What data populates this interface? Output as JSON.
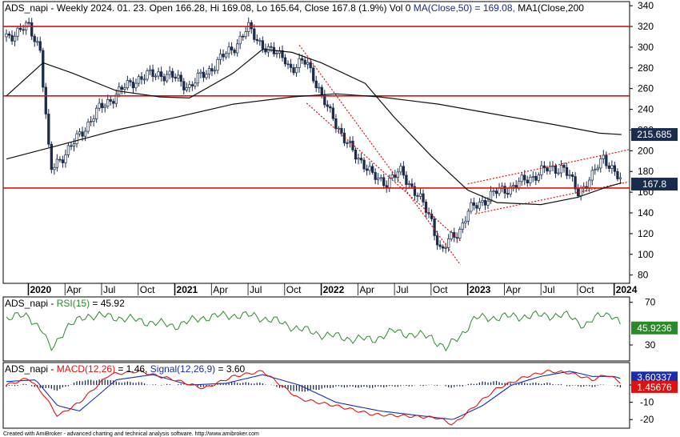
{
  "header": {
    "ticker": "ADS_napi",
    "price_text": " - Weekly 2024. 01. 23. Open 166.28, Hi 169.08, Lo 165.64, Close 167.8 (1.9%) Vol 0 ",
    "ma50_text": "MA(Close,50) = 169.08,",
    "ma200_text": " MA1(Close,200"
  },
  "rsi_header": {
    "ticker": "ADS_napi",
    "sep": " - ",
    "label": "RSI(15)",
    "value": " = 45.92"
  },
  "macd_header": {
    "ticker": "ADS_napi",
    "sep": " - ",
    "macd": "MACD(12,26)",
    "macd_value": " = 1.46, ",
    "signal": "Signal(12,26,9)",
    "signal_value": " = 3.60"
  },
  "footer": "Created with AmiBroker - advanced charting and technical analysis software. http://www.amibroker.com",
  "colors": {
    "candle": "#1a2c4e",
    "ma": "#111111",
    "support": "#e01010",
    "channel": "#e01010",
    "rsi": "#2a8a2a",
    "macd": "#e01010",
    "signal": "#1a2cb0",
    "hist": "#1a2c4e"
  },
  "chart_data": [
    {
      "type": "candlestick",
      "title": "ADS_napi - Weekly",
      "x_labels": [
        "2020",
        "Apr",
        "Jul",
        "Oct",
        "2021",
        "Apr",
        "Jul",
        "Oct",
        "2022",
        "Apr",
        "Jul",
        "Oct",
        "2023",
        "Apr",
        "Jul",
        "Oct",
        "2024"
      ],
      "y_ticks": [
        80,
        100,
        120,
        140,
        160,
        180,
        200,
        220,
        240,
        260,
        280,
        300,
        320,
        340
      ],
      "ylim": [
        72,
        344
      ],
      "close_series": [
        [
          2019.85,
          310
        ],
        [
          2020.0,
          320
        ],
        [
          2020.08,
          300
        ],
        [
          2020.15,
          180
        ],
        [
          2020.2,
          190
        ],
        [
          2020.3,
          205
        ],
        [
          2020.45,
          235
        ],
        [
          2020.6,
          255
        ],
        [
          2020.75,
          270
        ],
        [
          2020.9,
          275
        ],
        [
          2021.0,
          270
        ],
        [
          2021.1,
          262
        ],
        [
          2021.25,
          280
        ],
        [
          2021.4,
          300
        ],
        [
          2021.5,
          318
        ],
        [
          2021.55,
          310
        ],
        [
          2021.65,
          295
        ],
        [
          2021.75,
          292
        ],
        [
          2021.8,
          275
        ],
        [
          2021.9,
          290
        ],
        [
          2022.0,
          250
        ],
        [
          2022.08,
          235
        ],
        [
          2022.15,
          210
        ],
        [
          2022.25,
          195
        ],
        [
          2022.35,
          175
        ],
        [
          2022.45,
          170
        ],
        [
          2022.55,
          180
        ],
        [
          2022.65,
          158
        ],
        [
          2022.75,
          135
        ],
        [
          2022.82,
          100
        ],
        [
          2022.88,
          115
        ],
        [
          2022.95,
          125
        ],
        [
          2023.0,
          140
        ],
        [
          2023.08,
          150
        ],
        [
          2023.2,
          160
        ],
        [
          2023.35,
          168
        ],
        [
          2023.5,
          180
        ],
        [
          2023.65,
          185
        ],
        [
          2023.75,
          160
        ],
        [
          2023.85,
          175
        ],
        [
          2023.93,
          195
        ],
        [
          2024.0,
          180
        ],
        [
          2024.05,
          168
        ]
      ],
      "ma50": [
        [
          2019.85,
          253
        ],
        [
          2020.1,
          285
        ],
        [
          2020.3,
          275
        ],
        [
          2020.6,
          258
        ],
        [
          2020.9,
          252
        ],
        [
          2021.1,
          251
        ],
        [
          2021.4,
          275
        ],
        [
          2021.6,
          298
        ],
        [
          2021.8,
          295
        ],
        [
          2022.0,
          285
        ],
        [
          2022.3,
          265
        ],
        [
          2022.5,
          232
        ],
        [
          2022.75,
          195
        ],
        [
          2023.0,
          162
        ],
        [
          2023.2,
          150
        ],
        [
          2023.5,
          148
        ],
        [
          2023.75,
          155
        ],
        [
          2023.93,
          164
        ],
        [
          2024.05,
          169.08
        ]
      ],
      "ma200": [
        [
          2019.85,
          192
        ],
        [
          2020.2,
          205
        ],
        [
          2020.6,
          220
        ],
        [
          2021.0,
          232
        ],
        [
          2021.4,
          245
        ],
        [
          2021.8,
          252
        ],
        [
          2022.1,
          255
        ],
        [
          2022.4,
          252
        ],
        [
          2022.8,
          245
        ],
        [
          2023.2,
          235
        ],
        [
          2023.6,
          225
        ],
        [
          2023.9,
          217
        ],
        [
          2024.05,
          215.685
        ]
      ],
      "support_lines": [
        320,
        253,
        164
      ],
      "channel_down": [
        [
          [
            2021.85,
            302
          ],
          [
            2022.95,
            90
          ]
        ],
        [
          [
            2021.9,
            246
          ],
          [
            2022.95,
            113
          ]
        ]
      ],
      "channel_up": [
        [
          [
            2023.0,
            168
          ],
          [
            2024.1,
            201
          ]
        ],
        [
          [
            2023.05,
            139
          ],
          [
            2024.1,
            170
          ]
        ]
      ],
      "last_close": "167.8",
      "last_ma200": "215.685"
    },
    {
      "type": "line",
      "title": "RSI(15)",
      "y_ticks": [
        30,
        70
      ],
      "ylim": [
        15,
        75
      ],
      "series": [
        {
          "name": "RSI(15)",
          "values": [
            [
              2019.85,
              55
            ],
            [
              2020.0,
              58
            ],
            [
              2020.1,
              42
            ],
            [
              2020.15,
              25
            ],
            [
              2020.25,
              45
            ],
            [
              2020.4,
              58
            ],
            [
              2020.6,
              56
            ],
            [
              2020.8,
              52
            ],
            [
              2021.0,
              48
            ],
            [
              2021.2,
              56
            ],
            [
              2021.4,
              58
            ],
            [
              2021.55,
              57
            ],
            [
              2021.7,
              52
            ],
            [
              2021.85,
              45
            ],
            [
              2022.0,
              40
            ],
            [
              2022.2,
              36
            ],
            [
              2022.35,
              35
            ],
            [
              2022.5,
              43
            ],
            [
              2022.65,
              39
            ],
            [
              2022.75,
              38
            ],
            [
              2022.85,
              26
            ],
            [
              2022.95,
              39
            ],
            [
              2023.05,
              55
            ],
            [
              2023.2,
              56
            ],
            [
              2023.4,
              57
            ],
            [
              2023.55,
              58
            ],
            [
              2023.7,
              57
            ],
            [
              2023.8,
              48
            ],
            [
              2023.93,
              60
            ],
            [
              2024.0,
              58
            ],
            [
              2024.05,
              45.92
            ]
          ]
        }
      ],
      "last_value": "45.9236"
    },
    {
      "type": "line",
      "title": "MACD",
      "y_ticks": [
        -20,
        -10,
        0
      ],
      "ylim": [
        -25,
        13
      ],
      "series": [
        {
          "name": "MACD(12,26)",
          "values": [
            [
              2019.85,
              0
            ],
            [
              2020.0,
              4
            ],
            [
              2020.1,
              -5
            ],
            [
              2020.2,
              -18
            ],
            [
              2020.35,
              -10
            ],
            [
              2020.55,
              6
            ],
            [
              2020.75,
              8
            ],
            [
              2021.0,
              3
            ],
            [
              2021.2,
              -2
            ],
            [
              2021.4,
              5
            ],
            [
              2021.6,
              8
            ],
            [
              2021.85,
              -8
            ],
            [
              2022.1,
              -12
            ],
            [
              2022.35,
              -17
            ],
            [
              2022.6,
              -18
            ],
            [
              2022.8,
              -19
            ],
            [
              2022.9,
              -23
            ],
            [
              2023.05,
              -12
            ],
            [
              2023.2,
              -2
            ],
            [
              2023.4,
              5
            ],
            [
              2023.55,
              8
            ],
            [
              2023.7,
              7
            ],
            [
              2023.85,
              3
            ],
            [
              2023.95,
              6
            ],
            [
              2024.05,
              1.46
            ]
          ]
        },
        {
          "name": "Signal(12,26,9)",
          "values": [
            [
              2019.85,
              2
            ],
            [
              2020.05,
              3
            ],
            [
              2020.2,
              -12
            ],
            [
              2020.35,
              -15
            ],
            [
              2020.6,
              3
            ],
            [
              2020.85,
              6
            ],
            [
              2021.1,
              0
            ],
            [
              2021.35,
              1
            ],
            [
              2021.6,
              6
            ],
            [
              2021.85,
              0
            ],
            [
              2022.1,
              -10
            ],
            [
              2022.4,
              -15
            ],
            [
              2022.7,
              -18
            ],
            [
              2022.9,
              -20
            ],
            [
              2023.1,
              -12
            ],
            [
              2023.3,
              0
            ],
            [
              2023.5,
              5
            ],
            [
              2023.7,
              8
            ],
            [
              2023.85,
              5
            ],
            [
              2024.0,
              5
            ],
            [
              2024.05,
              3.6
            ]
          ]
        }
      ],
      "macd_last": "1.45676",
      "signal_last": "3.60337"
    }
  ]
}
